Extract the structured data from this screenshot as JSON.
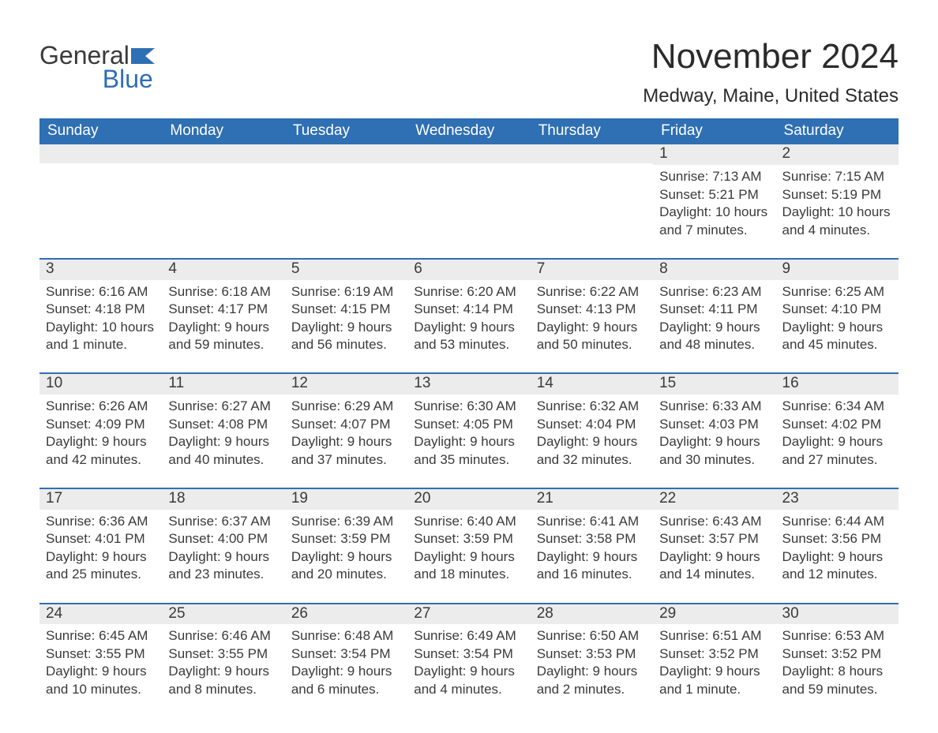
{
  "colors": {
    "brand_blue": "#2f6fb3",
    "header_bg": "#2f6fb3",
    "header_text": "#ffffff",
    "daynum_bg": "#ececec",
    "text": "#3a3a3a",
    "week_divider": "#2f6fb3",
    "page_bg": "#ffffff"
  },
  "typography": {
    "title_fontsize_pt": 33,
    "location_fontsize_pt": 18,
    "dow_fontsize_pt": 14,
    "daynum_fontsize_pt": 14,
    "body_fontsize_pt": 13,
    "logo_fontsize_pt": 24
  },
  "logo": {
    "line1": "General",
    "line2": "Blue"
  },
  "title": "November 2024",
  "location": "Medway, Maine, United States",
  "days_of_week": [
    "Sunday",
    "Monday",
    "Tuesday",
    "Wednesday",
    "Thursday",
    "Friday",
    "Saturday"
  ],
  "weeks": [
    [
      {
        "n": "",
        "sunrise": "",
        "sunset": "",
        "daylight": ""
      },
      {
        "n": "",
        "sunrise": "",
        "sunset": "",
        "daylight": ""
      },
      {
        "n": "",
        "sunrise": "",
        "sunset": "",
        "daylight": ""
      },
      {
        "n": "",
        "sunrise": "",
        "sunset": "",
        "daylight": ""
      },
      {
        "n": "",
        "sunrise": "",
        "sunset": "",
        "daylight": ""
      },
      {
        "n": "1",
        "sunrise": "Sunrise: 7:13 AM",
        "sunset": "Sunset: 5:21 PM",
        "daylight": "Daylight: 10 hours and 7 minutes."
      },
      {
        "n": "2",
        "sunrise": "Sunrise: 7:15 AM",
        "sunset": "Sunset: 5:19 PM",
        "daylight": "Daylight: 10 hours and 4 minutes."
      }
    ],
    [
      {
        "n": "3",
        "sunrise": "Sunrise: 6:16 AM",
        "sunset": "Sunset: 4:18 PM",
        "daylight": "Daylight: 10 hours and 1 minute."
      },
      {
        "n": "4",
        "sunrise": "Sunrise: 6:18 AM",
        "sunset": "Sunset: 4:17 PM",
        "daylight": "Daylight: 9 hours and 59 minutes."
      },
      {
        "n": "5",
        "sunrise": "Sunrise: 6:19 AM",
        "sunset": "Sunset: 4:15 PM",
        "daylight": "Daylight: 9 hours and 56 minutes."
      },
      {
        "n": "6",
        "sunrise": "Sunrise: 6:20 AM",
        "sunset": "Sunset: 4:14 PM",
        "daylight": "Daylight: 9 hours and 53 minutes."
      },
      {
        "n": "7",
        "sunrise": "Sunrise: 6:22 AM",
        "sunset": "Sunset: 4:13 PM",
        "daylight": "Daylight: 9 hours and 50 minutes."
      },
      {
        "n": "8",
        "sunrise": "Sunrise: 6:23 AM",
        "sunset": "Sunset: 4:11 PM",
        "daylight": "Daylight: 9 hours and 48 minutes."
      },
      {
        "n": "9",
        "sunrise": "Sunrise: 6:25 AM",
        "sunset": "Sunset: 4:10 PM",
        "daylight": "Daylight: 9 hours and 45 minutes."
      }
    ],
    [
      {
        "n": "10",
        "sunrise": "Sunrise: 6:26 AM",
        "sunset": "Sunset: 4:09 PM",
        "daylight": "Daylight: 9 hours and 42 minutes."
      },
      {
        "n": "11",
        "sunrise": "Sunrise: 6:27 AM",
        "sunset": "Sunset: 4:08 PM",
        "daylight": "Daylight: 9 hours and 40 minutes."
      },
      {
        "n": "12",
        "sunrise": "Sunrise: 6:29 AM",
        "sunset": "Sunset: 4:07 PM",
        "daylight": "Daylight: 9 hours and 37 minutes."
      },
      {
        "n": "13",
        "sunrise": "Sunrise: 6:30 AM",
        "sunset": "Sunset: 4:05 PM",
        "daylight": "Daylight: 9 hours and 35 minutes."
      },
      {
        "n": "14",
        "sunrise": "Sunrise: 6:32 AM",
        "sunset": "Sunset: 4:04 PM",
        "daylight": "Daylight: 9 hours and 32 minutes."
      },
      {
        "n": "15",
        "sunrise": "Sunrise: 6:33 AM",
        "sunset": "Sunset: 4:03 PM",
        "daylight": "Daylight: 9 hours and 30 minutes."
      },
      {
        "n": "16",
        "sunrise": "Sunrise: 6:34 AM",
        "sunset": "Sunset: 4:02 PM",
        "daylight": "Daylight: 9 hours and 27 minutes."
      }
    ],
    [
      {
        "n": "17",
        "sunrise": "Sunrise: 6:36 AM",
        "sunset": "Sunset: 4:01 PM",
        "daylight": "Daylight: 9 hours and 25 minutes."
      },
      {
        "n": "18",
        "sunrise": "Sunrise: 6:37 AM",
        "sunset": "Sunset: 4:00 PM",
        "daylight": "Daylight: 9 hours and 23 minutes."
      },
      {
        "n": "19",
        "sunrise": "Sunrise: 6:39 AM",
        "sunset": "Sunset: 3:59 PM",
        "daylight": "Daylight: 9 hours and 20 minutes."
      },
      {
        "n": "20",
        "sunrise": "Sunrise: 6:40 AM",
        "sunset": "Sunset: 3:59 PM",
        "daylight": "Daylight: 9 hours and 18 minutes."
      },
      {
        "n": "21",
        "sunrise": "Sunrise: 6:41 AM",
        "sunset": "Sunset: 3:58 PM",
        "daylight": "Daylight: 9 hours and 16 minutes."
      },
      {
        "n": "22",
        "sunrise": "Sunrise: 6:43 AM",
        "sunset": "Sunset: 3:57 PM",
        "daylight": "Daylight: 9 hours and 14 minutes."
      },
      {
        "n": "23",
        "sunrise": "Sunrise: 6:44 AM",
        "sunset": "Sunset: 3:56 PM",
        "daylight": "Daylight: 9 hours and 12 minutes."
      }
    ],
    [
      {
        "n": "24",
        "sunrise": "Sunrise: 6:45 AM",
        "sunset": "Sunset: 3:55 PM",
        "daylight": "Daylight: 9 hours and 10 minutes."
      },
      {
        "n": "25",
        "sunrise": "Sunrise: 6:46 AM",
        "sunset": "Sunset: 3:55 PM",
        "daylight": "Daylight: 9 hours and 8 minutes."
      },
      {
        "n": "26",
        "sunrise": "Sunrise: 6:48 AM",
        "sunset": "Sunset: 3:54 PM",
        "daylight": "Daylight: 9 hours and 6 minutes."
      },
      {
        "n": "27",
        "sunrise": "Sunrise: 6:49 AM",
        "sunset": "Sunset: 3:54 PM",
        "daylight": "Daylight: 9 hours and 4 minutes."
      },
      {
        "n": "28",
        "sunrise": "Sunrise: 6:50 AM",
        "sunset": "Sunset: 3:53 PM",
        "daylight": "Daylight: 9 hours and 2 minutes."
      },
      {
        "n": "29",
        "sunrise": "Sunrise: 6:51 AM",
        "sunset": "Sunset: 3:52 PM",
        "daylight": "Daylight: 9 hours and 1 minute."
      },
      {
        "n": "30",
        "sunrise": "Sunrise: 6:53 AM",
        "sunset": "Sunset: 3:52 PM",
        "daylight": "Daylight: 8 hours and 59 minutes."
      }
    ]
  ]
}
